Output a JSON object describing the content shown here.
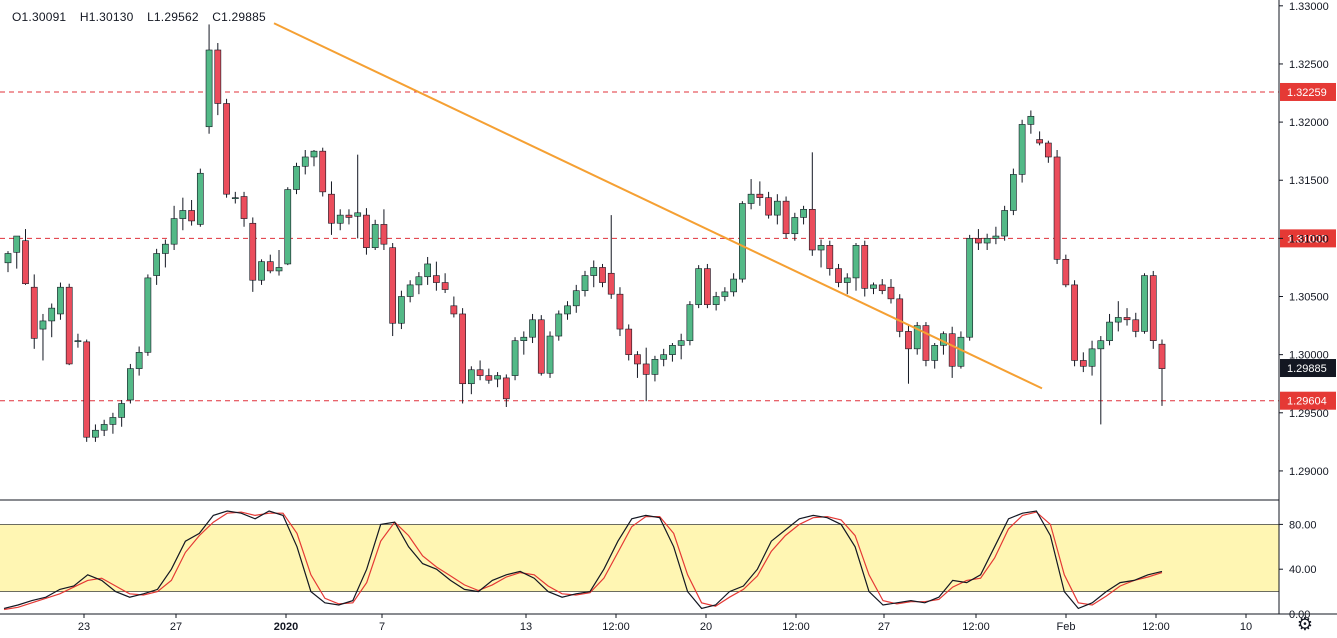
{
  "ohlc": {
    "open": "O1.30091",
    "high": "H1.30130",
    "low": "L1.29562",
    "close": "C1.29885"
  },
  "colors": {
    "up": "#53b987",
    "down": "#eb4d5c",
    "wick": "#131722",
    "trendline": "#f5a033",
    "level_line": "#e0303a",
    "level_label_bg": "#e53935",
    "current_label_bg": "#131722",
    "stoch_k": "#131722",
    "stoch_d": "#e53935",
    "stoch_band": "#fff6b3"
  },
  "price_axis": {
    "ticks": [
      "1.33000",
      "1.32500",
      "1.32000",
      "1.31500",
      "1.31000",
      "1.30500",
      "1.30000",
      "1.29500",
      "1.29000"
    ]
  },
  "horizontal_levels": [
    {
      "label": "1.32259",
      "value": 1.32259
    },
    {
      "label": "1.31000",
      "value": 1.31
    },
    {
      "label": "1.29604",
      "value": 1.29604
    }
  ],
  "current_price": {
    "label": "1.29885",
    "value": 1.29885
  },
  "time_axis": {
    "labels": [
      "23",
      "27",
      "2020",
      "7",
      "13",
      "12:00",
      "20",
      "12:00",
      "27",
      "12:00",
      "Feb",
      "12:00",
      "10"
    ]
  },
  "stochastic": {
    "ticks": [
      "80.00",
      "40.00",
      "0.00"
    ],
    "upper_band": 80,
    "lower_band": 20,
    "k": [
      5,
      8,
      12,
      15,
      22,
      25,
      35,
      30,
      20,
      15,
      18,
      22,
      40,
      65,
      72,
      88,
      92,
      90,
      85,
      92,
      88,
      60,
      20,
      10,
      8,
      12,
      40,
      80,
      82,
      60,
      45,
      40,
      30,
      22,
      20,
      30,
      35,
      38,
      32,
      20,
      15,
      18,
      20,
      40,
      65,
      85,
      88,
      86,
      60,
      20,
      5,
      8,
      20,
      25,
      40,
      65,
      75,
      85,
      88,
      86,
      80,
      60,
      20,
      8,
      10,
      12,
      10,
      15,
      30,
      28,
      35,
      60,
      85,
      90,
      92,
      70,
      20,
      5,
      10,
      20,
      28,
      30,
      35,
      38
    ],
    "d": [
      4,
      6,
      10,
      14,
      18,
      24,
      30,
      32,
      25,
      18,
      17,
      20,
      30,
      55,
      70,
      82,
      90,
      91,
      88,
      90,
      90,
      72,
      35,
      14,
      9,
      10,
      28,
      65,
      82,
      70,
      52,
      42,
      34,
      26,
      21,
      26,
      33,
      37,
      35,
      25,
      18,
      17,
      19,
      32,
      55,
      78,
      87,
      87,
      72,
      35,
      10,
      7,
      15,
      22,
      34,
      56,
      70,
      80,
      86,
      87,
      84,
      70,
      35,
      12,
      9,
      11,
      11,
      13,
      24,
      30,
      32,
      50,
      76,
      88,
      91,
      80,
      35,
      10,
      8,
      16,
      25,
      30,
      33,
      37
    ]
  },
  "chart_data": {
    "type": "candlestick",
    "title": "",
    "xlabel": "",
    "ylabel": "",
    "ylim": [
      1.2875,
      1.3305
    ],
    "x_labels": [
      "23",
      "27",
      "2020",
      "7",
      "13",
      "12:00",
      "20",
      "12:00",
      "27",
      "12:00",
      "Feb",
      "12:00",
      "10"
    ],
    "candles": [
      [
        1.3079,
        1.3089,
        1.3071,
        1.3087
      ],
      [
        1.3088,
        1.3101,
        1.3074,
        1.3102
      ],
      [
        1.3098,
        1.3108,
        1.306,
        1.3061
      ],
      [
        1.3058,
        1.3069,
        1.3005,
        1.3014
      ],
      [
        1.3022,
        1.3035,
        1.2995,
        1.3029
      ],
      [
        1.3029,
        1.3044,
        1.3015,
        1.304
      ],
      [
        1.3035,
        1.3062,
        1.303,
        1.3058
      ],
      [
        1.3058,
        1.3061,
        1.2991,
        1.2992
      ],
      [
        1.3012,
        1.3018,
        1.3006,
        1.3012
      ],
      [
        1.3011,
        1.3013,
        1.2925,
        1.2929
      ],
      [
        1.2929,
        1.294,
        1.2925,
        1.2935
      ],
      [
        1.2935,
        1.2944,
        1.293,
        1.294
      ],
      [
        1.294,
        1.295,
        1.2932,
        1.2946
      ],
      [
        1.2946,
        1.2961,
        1.2938,
        1.2958
      ],
      [
        1.2961,
        1.2992,
        1.2958,
        1.2988
      ],
      [
        1.2988,
        1.3007,
        1.2982,
        1.3002
      ],
      [
        1.3002,
        1.3069,
        1.2999,
        1.3066
      ],
      [
        1.3068,
        1.3091,
        1.306,
        1.3087
      ],
      [
        1.3087,
        1.3099,
        1.3075,
        1.3095
      ],
      [
        1.3095,
        1.3128,
        1.309,
        1.3117
      ],
      [
        1.3117,
        1.3135,
        1.3107,
        1.3124
      ],
      [
        1.3124,
        1.3133,
        1.3111,
        1.3115
      ],
      [
        1.3112,
        1.316,
        1.311,
        1.3156
      ],
      [
        1.3196,
        1.3284,
        1.319,
        1.3262
      ],
      [
        1.3262,
        1.3268,
        1.3206,
        1.3216
      ],
      [
        1.3216,
        1.322,
        1.3135,
        1.3138
      ],
      [
        1.3135,
        1.314,
        1.313,
        1.3135
      ],
      [
        1.3136,
        1.314,
        1.311,
        1.3117
      ],
      [
        1.3113,
        1.3118,
        1.3054,
        1.3064
      ],
      [
        1.3064,
        1.3082,
        1.306,
        1.308
      ],
      [
        1.308,
        1.3086,
        1.307,
        1.3072
      ],
      [
        1.3072,
        1.309,
        1.3068,
        1.3075
      ],
      [
        1.3078,
        1.3144,
        1.3077,
        1.3142
      ],
      [
        1.3142,
        1.3165,
        1.3138,
        1.3162
      ],
      [
        1.3162,
        1.3176,
        1.3155,
        1.317
      ],
      [
        1.317,
        1.3176,
        1.3162,
        1.3175
      ],
      [
        1.3175,
        1.3178,
        1.3136,
        1.314
      ],
      [
        1.3138,
        1.3149,
        1.3103,
        1.3113
      ],
      [
        1.3113,
        1.3125,
        1.3107,
        1.312
      ],
      [
        1.312,
        1.3125,
        1.3112,
        1.3118
      ],
      [
        1.3119,
        1.3172,
        1.31,
        1.3122
      ],
      [
        1.312,
        1.3126,
        1.3086,
        1.3092
      ],
      [
        1.3092,
        1.3116,
        1.309,
        1.3112
      ],
      [
        1.3112,
        1.3125,
        1.309,
        1.3095
      ],
      [
        1.3092,
        1.3096,
        1.3016,
        1.3027
      ],
      [
        1.3027,
        1.3055,
        1.3022,
        1.305
      ],
      [
        1.305,
        1.3064,
        1.3045,
        1.306
      ],
      [
        1.306,
        1.3071,
        1.3052,
        1.3067
      ],
      [
        1.3067,
        1.3084,
        1.306,
        1.3078
      ],
      [
        1.3068,
        1.308,
        1.3055,
        1.3062
      ],
      [
        1.3062,
        1.307,
        1.3053,
        1.3056
      ],
      [
        1.3042,
        1.305,
        1.3032,
        1.3035
      ],
      [
        1.3035,
        1.304,
        1.2958,
        1.2975
      ],
      [
        1.2975,
        1.299,
        1.2966,
        1.2987
      ],
      [
        1.2987,
        1.2995,
        1.2978,
        1.2982
      ],
      [
        1.2982,
        1.2988,
        1.2975,
        1.2978
      ],
      [
        1.2979,
        1.2985,
        1.2972,
        1.2982
      ],
      [
        1.298,
        1.2983,
        1.2955,
        1.2962
      ],
      [
        1.2982,
        1.3015,
        1.2978,
        1.3012
      ],
      [
        1.3012,
        1.302,
        1.3,
        1.3015
      ],
      [
        1.3015,
        1.3035,
        1.301,
        1.303
      ],
      [
        1.303,
        1.3034,
        1.2982,
        1.2984
      ],
      [
        1.2984,
        1.302,
        1.298,
        1.3016
      ],
      [
        1.3016,
        1.3038,
        1.3012,
        1.3035
      ],
      [
        1.3035,
        1.3046,
        1.303,
        1.3042
      ],
      [
        1.3042,
        1.306,
        1.3036,
        1.3055
      ],
      [
        1.3055,
        1.3072,
        1.305,
        1.3068
      ],
      [
        1.3068,
        1.3081,
        1.3058,
        1.3075
      ],
      [
        1.3075,
        1.3078,
        1.3058,
        1.3062
      ],
      [
        1.307,
        1.312,
        1.3048,
        1.3052
      ],
      [
        1.3052,
        1.3058,
        1.3016,
        1.3022
      ],
      [
        1.3022,
        1.3026,
        1.2995,
        1.3
      ],
      [
        1.3,
        1.3003,
        1.298,
        1.2992
      ],
      [
        1.2992,
        1.3006,
        1.296,
        1.2983
      ],
      [
        1.2983,
        1.2999,
        1.2977,
        1.2996
      ],
      [
        1.2996,
        1.3005,
        1.299,
        1.3
      ],
      [
        1.3,
        1.301,
        1.2994,
        1.3008
      ],
      [
        1.3008,
        1.3018,
        1.2996,
        1.3012
      ],
      [
        1.3012,
        1.3046,
        1.3008,
        1.3043
      ],
      [
        1.3043,
        1.3077,
        1.304,
        1.3074
      ],
      [
        1.3074,
        1.3078,
        1.304,
        1.3043
      ],
      [
        1.3043,
        1.3054,
        1.3038,
        1.305
      ],
      [
        1.305,
        1.3058,
        1.3046,
        1.3054
      ],
      [
        1.3054,
        1.307,
        1.305,
        1.3065
      ]
    ],
    "candles_tail": [
      [
        1.3065,
        1.3132,
        1.3062,
        1.313
      ],
      [
        1.313,
        1.3151,
        1.3125,
        1.3138
      ],
      [
        1.3138,
        1.3149,
        1.3128,
        1.3135
      ],
      [
        1.3135,
        1.314,
        1.3117,
        1.312
      ],
      [
        1.312,
        1.3138,
        1.3112,
        1.3132
      ],
      [
        1.3132,
        1.3136,
        1.31,
        1.3104
      ],
      [
        1.3104,
        1.3122,
        1.3098,
        1.3118
      ],
      [
        1.3118,
        1.3128,
        1.3112,
        1.3125
      ],
      [
        1.3125,
        1.3174,
        1.3085,
        1.309
      ],
      [
        1.309,
        1.3099,
        1.3075,
        1.3094
      ],
      [
        1.3094,
        1.3098,
        1.3068,
        1.3074
      ],
      [
        1.3074,
        1.3078,
        1.3058,
        1.3062
      ],
      [
        1.3062,
        1.307,
        1.3052,
        1.3066
      ],
      [
        1.3066,
        1.3096,
        1.3055,
        1.3094
      ],
      [
        1.3094,
        1.3098,
        1.305,
        1.3057
      ],
      [
        1.3057,
        1.3062,
        1.3052,
        1.306
      ],
      [
        1.306,
        1.3065,
        1.3052,
        1.3055
      ],
      [
        1.3058,
        1.3065,
        1.3044,
        1.3048
      ],
      [
        1.3048,
        1.3052,
        1.3015,
        1.302
      ],
      [
        1.302,
        1.3025,
        1.2975,
        1.3005
      ],
      [
        1.3005,
        1.3028,
        1.3,
        1.3025
      ],
      [
        1.3025,
        1.3028,
        1.299,
        1.2995
      ],
      [
        1.2995,
        1.301,
        1.2988,
        1.3008
      ],
      [
        1.3008,
        1.302,
        1.3,
        1.3018
      ],
      [
        1.3018,
        1.3024,
        1.298,
        1.299
      ],
      [
        1.299,
        1.302,
        1.2988,
        1.3015
      ],
      [
        1.3015,
        1.3103,
        1.3012,
        1.31
      ],
      [
        1.31,
        1.3108,
        1.309,
        1.3096
      ],
      [
        1.3096,
        1.3104,
        1.309,
        1.31
      ],
      [
        1.31,
        1.311,
        1.3095,
        1.3102
      ],
      [
        1.3102,
        1.3128,
        1.3098,
        1.3124
      ],
      [
        1.3124,
        1.316,
        1.312,
        1.3155
      ],
      [
        1.3155,
        1.3202,
        1.3148,
        1.3198
      ],
      [
        1.3198,
        1.321,
        1.319,
        1.3205
      ],
      [
        1.3185,
        1.3192,
        1.318,
        1.3182
      ],
      [
        1.3182,
        1.3184,
        1.3165,
        1.317
      ],
      [
        1.317,
        1.3176,
        1.3078,
        1.3082
      ],
      [
        1.3082,
        1.3086,
        1.3058,
        1.306
      ],
      [
        1.306,
        1.3064,
        1.299,
        1.2995
      ],
      [
        1.2995,
        1.3002,
        1.2985,
        1.299
      ],
      [
        1.299,
        1.3012,
        1.2982,
        1.3005
      ],
      [
        1.3005,
        1.3016,
        1.294,
        1.3012
      ],
      [
        1.3012,
        1.3035,
        1.3008,
        1.3028
      ],
      [
        1.3028,
        1.3046,
        1.302,
        1.3032
      ],
      [
        1.3032,
        1.304,
        1.3025,
        1.303
      ],
      [
        1.303,
        1.3036,
        1.3015,
        1.302
      ],
      [
        1.302,
        1.307,
        1.3018,
        1.3068
      ],
      [
        1.3068,
        1.3072,
        1.3005,
        1.3012
      ],
      [
        1.3009,
        1.3013,
        1.2956,
        1.2988
      ]
    ]
  }
}
